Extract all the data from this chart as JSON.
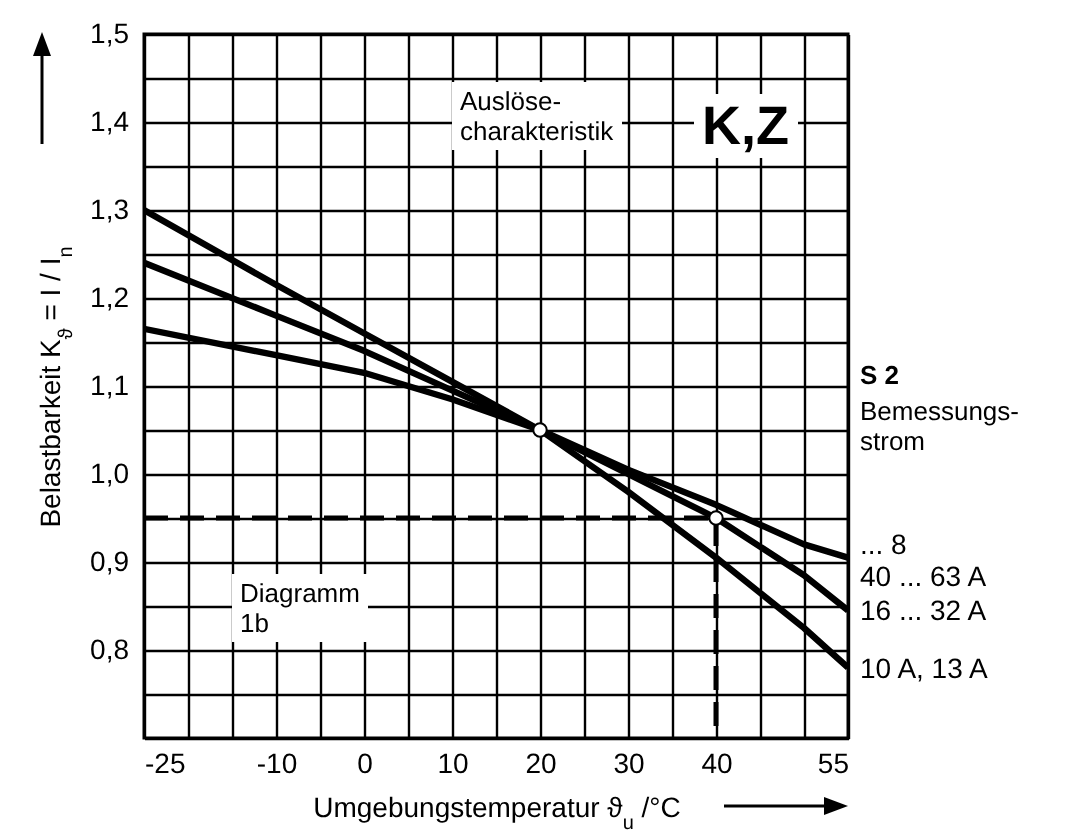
{
  "chart_data": {
    "type": "line",
    "xlabel": "Umgebungstemperatur ϑ$_{u}$ /°C",
    "ylabel": "Belastbarkeit K$_{ϑ}$ = I / I$_{n}$",
    "annotations": [
      "Auslöse-\ncharakteristik",
      "K,Z",
      "Diagramm\n1b",
      "S 2",
      "Bemessungs-\nstrom"
    ],
    "xlim": [
      -25,
      55
    ],
    "ylim": [
      0.7,
      1.5
    ],
    "xticks": [
      -25,
      {
        "value": -20,
        "label": null
      },
      {
        "value": -15,
        "label": null
      },
      -10,
      {
        "value": -5,
        "label": null
      },
      0,
      {
        "value": 5,
        "label": null
      },
      10,
      {
        "value": 15,
        "label": null
      },
      20,
      {
        "value": 25,
        "label": null
      },
      30,
      {
        "value": 35,
        "label": null
      },
      40,
      {
        "value": 45,
        "label": null
      },
      {
        "value": 50,
        "label": null
      },
      55
    ],
    "yticks": [
      {
        "value": 0.7,
        "label": null
      },
      {
        "value": 0.75,
        "label": null
      },
      {
        "value": 0.8,
        "label": "0,8"
      },
      {
        "value": 0.85,
        "label": null
      },
      {
        "value": 0.9,
        "label": "0,9"
      },
      {
        "value": 0.95,
        "label": null
      },
      {
        "value": 1.0,
        "label": "1,0"
      },
      {
        "value": 1.05,
        "label": null
      },
      {
        "value": 1.1,
        "label": "1,1"
      },
      {
        "value": 1.15,
        "label": null
      },
      {
        "value": 1.2,
        "label": "1,2"
      },
      {
        "value": 1.25,
        "label": null
      },
      {
        "value": 1.3,
        "label": "1,3"
      },
      {
        "value": 1.35,
        "label": null
      },
      {
        "value": 1.4,
        "label": "1,4"
      },
      {
        "value": 1.45,
        "label": null
      },
      {
        "value": 1.5,
        "label": "1,5"
      }
    ],
    "grid": true,
    "series": [
      {
        "name": "... 8\n40 ... 63 A",
        "color": "#000000",
        "line_style": "solid",
        "x": [
          -25,
          -10,
          0,
          10,
          20,
          30,
          40,
          50,
          55
        ],
        "values": [
          1.165,
          1.135,
          1.115,
          1.085,
          1.05,
          1.005,
          0.965,
          0.92,
          0.905
        ]
      },
      {
        "name": "16 ... 32 A",
        "color": "#000000",
        "line_style": "solid",
        "x": [
          -25,
          -10,
          0,
          10,
          20,
          30,
          40,
          50,
          55
        ],
        "values": [
          1.24,
          1.18,
          1.14,
          1.095,
          1.05,
          1.0,
          0.95,
          0.885,
          0.845
        ]
      },
      {
        "name": "10 A, 13 A",
        "color": "#000000",
        "line_style": "solid",
        "x": [
          -25,
          -10,
          0,
          10,
          20,
          30,
          40,
          50,
          55
        ],
        "values": [
          1.3,
          1.215,
          1.16,
          1.105,
          1.05,
          0.98,
          0.905,
          0.825,
          0.78
        ]
      },
      {
        "color": "#000000",
        "line_style": "dashed",
        "x": [
          -25,
          40,
          40
        ],
        "values": [
          0.95,
          0.95,
          0.7
        ]
      },
      {
        "type": "scatter",
        "marker": "circle",
        "color": "#ffffff",
        "x": [
          20,
          40
        ],
        "values": [
          1.05,
          0.95
        ]
      }
    ]
  }
}
